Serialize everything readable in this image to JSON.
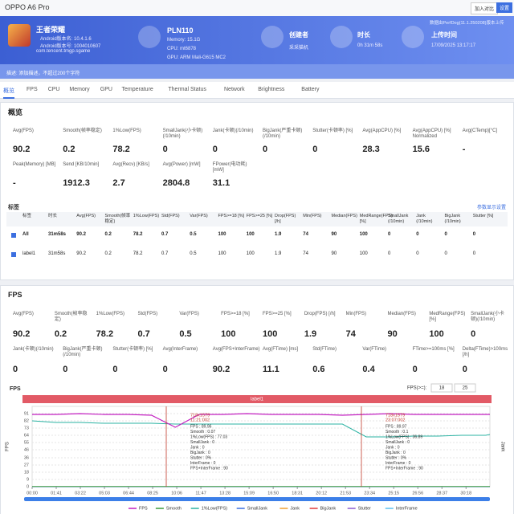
{
  "header": {
    "device": "OPPO A6 Pro",
    "buttons": [
      "加入对比",
      "设置"
    ],
    "upload_note": "数据由PerfDog(11.1.250208)版本上传"
  },
  "app": {
    "name": "王者荣耀",
    "lines": [
      "Android版本名: 10.4.1.6",
      "Android版本号: 1004010607",
      "com.tencent.tmgp.sgame"
    ]
  },
  "device": {
    "model": "PLN110",
    "lines": [
      "Memory: 15.1G",
      "CPU: mt6878",
      "GPU: ARM Mali-G615 MC2"
    ]
  },
  "info": [
    {
      "label": "创建者",
      "value": "采采猫机"
    },
    {
      "label": "时长",
      "value": "0h 31m 58s"
    },
    {
      "label": "上传时间",
      "value": "17/09/2025 13:17:17"
    }
  ],
  "description": "描述: 添加描述，不超过200个字符",
  "tabs": [
    "概览",
    "FPS",
    "CPU",
    "Memory",
    "GPU",
    "Temperature",
    "Thermal Status",
    "Network",
    "Brightness",
    "Battery"
  ],
  "overview": {
    "title": "概览",
    "metrics": [
      [
        {
          "label": "Avg(FPS)",
          "value": 90.2
        },
        {
          "label": "Smooth(帧率稳定)",
          "value": 0.2
        },
        {
          "label": "1%Low(FPS)",
          "value": 78.2
        },
        {
          "label": "SmallJank(小卡顿)(/10min)",
          "value": 0
        },
        {
          "label": "Jank(卡顿)(/10min)",
          "value": 0
        },
        {
          "label": "BigJank(严重卡顿)(/10min)",
          "value": 0
        },
        {
          "label": "Stutter(卡顿率) [%]",
          "value": 0
        },
        {
          "label": "Avg(AppCPU) [%]",
          "value": 28.3
        },
        {
          "label": "Avg(AppCPU) [%] Normalized",
          "value": 15.6
        },
        {
          "label": "Avg(CTemp)[°C]",
          "value": "-"
        }
      ],
      [
        {
          "label": "Peak(Memory) [MB]",
          "value": "-"
        },
        {
          "label": "Send [KB/10min]",
          "value": 1912.3
        },
        {
          "label": "Avg(Recv) [KB/s]",
          "value": 2.7
        },
        {
          "label": "Avg(Power) [mW]",
          "value": 2804.8
        },
        {
          "label": "FPower(电功耗) [mW]",
          "value": 31.1
        }
      ]
    ],
    "labels_title": "标签",
    "settings_link": "参数显示设置",
    "table": {
      "columns": [
        "标签",
        "时长",
        "Avg(FPS)",
        "Smooth(帧率稳定)",
        "1%Low(FPS)",
        "Std(FPS)",
        "Var(FPS)",
        "FPS>=18 [%]",
        "FPS>=25 [%]",
        "Drop(FPS) [/h]",
        "Min(FPS)",
        "Median(FPS)",
        "MedRange(FPS)[%]",
        "SmallJank (/10min)",
        "Jank (/10min)",
        "BigJank (/10min)",
        "Stutter [%]"
      ],
      "rows": [
        [
          "All",
          "31m58s",
          90.2,
          0.2,
          78.2,
          0.7,
          0.5,
          100,
          100,
          1.9,
          74,
          90,
          100,
          0,
          0,
          0,
          0
        ],
        [
          "label1",
          "31m58s",
          90.2,
          0.2,
          78.2,
          0.7,
          0.5,
          100,
          100,
          1.9,
          74,
          90,
          100,
          0,
          0,
          0,
          0
        ]
      ]
    }
  },
  "fps": {
    "title": "FPS",
    "metrics": [
      [
        {
          "label": "Avg(FPS)",
          "value": 90.2
        },
        {
          "label": "Smooth(帧率稳定)",
          "value": 0.2
        },
        {
          "label": "1%Low(FPS)",
          "value": 78.2
        },
        {
          "label": "Std(FPS)",
          "value": 0.7
        },
        {
          "label": "Var(FPS)",
          "value": 0.5
        },
        {
          "label": "FPS>=18 [%]",
          "value": 100
        },
        {
          "label": "FPS>=25 [%]",
          "value": 100
        },
        {
          "label": "Drop(FPS) [/h]",
          "value": 1.9
        },
        {
          "label": "Min(FPS)",
          "value": 74
        },
        {
          "label": "Median(FPS)",
          "value": 90
        },
        {
          "label": "MedRange(FPS)[%]",
          "value": 100
        },
        {
          "label": "SmallJank(小卡顿)(/10min)",
          "value": 0
        }
      ],
      [
        {
          "label": "Jank(卡顿)(/10min)",
          "value": 0
        },
        {
          "label": "BigJank(严重卡顿)(/10min)",
          "value": 0
        },
        {
          "label": "Stutter(卡顿率) [%]",
          "value": 0
        },
        {
          "label": "Avg(InterFrame)",
          "value": 0
        },
        {
          "label": "Avg(FPS+InterFrame)",
          "value": 90.2
        },
        {
          "label": "Avg(FTime) [ms]",
          "value": 11.1
        },
        {
          "label": "Std(FTime)",
          "value": 0.6
        },
        {
          "label": "Var(FTime)",
          "value": 0.4
        },
        {
          "label": "FTime>=100ms [%]",
          "value": 0
        },
        {
          "label": "Delta(FTime)>100ms [/h]",
          "value": 0
        }
      ]
    ],
    "chart": {
      "type": "line",
      "title": "FPS",
      "threshold_label": "FPS(>=):",
      "thresholds": [
        18,
        25
      ],
      "band": "label1",
      "ylabel": "FPS",
      "y2label": "Jank",
      "x": [
        0,
        100,
        200,
        300,
        400,
        500,
        600,
        700,
        800,
        900,
        1000,
        1100,
        1200,
        1300,
        1400,
        1500,
        1600,
        1700,
        1800,
        1900,
        1918
      ],
      "xlim": [
        0,
        1918
      ],
      "xticks": [
        {
          "value": 0,
          "label": "00:00"
        },
        {
          "value": 101,
          "label": "01:41"
        },
        {
          "value": 202,
          "label": "03:22"
        },
        {
          "value": 303,
          "label": "05:03"
        },
        {
          "value": 404,
          "label": "06:44"
        },
        {
          "value": 505,
          "label": "08:25"
        },
        {
          "value": 606,
          "label": "10:06"
        },
        {
          "value": 707,
          "label": "11:47"
        },
        {
          "value": 808,
          "label": "13:28"
        },
        {
          "value": 909,
          "label": "15:09"
        },
        {
          "value": 1010,
          "label": "16:50"
        },
        {
          "value": 1111,
          "label": "18:31"
        },
        {
          "value": 1212,
          "label": "20:12"
        },
        {
          "value": 1313,
          "label": "21:53"
        },
        {
          "value": 1414,
          "label": "23:34"
        },
        {
          "value": 1515,
          "label": "25:15"
        },
        {
          "value": 1616,
          "label": "26:56"
        },
        {
          "value": 1717,
          "label": "28:37"
        },
        {
          "value": 1818,
          "label": "30:18"
        }
      ],
      "ylim": [
        0,
        100
      ],
      "yticks": [
        0,
        9,
        18,
        27,
        36,
        46,
        55,
        64,
        73,
        82,
        91
      ],
      "series": [
        {
          "name": "FPS",
          "color": "#c21fc0",
          "values": [
            90,
            90,
            91,
            90,
            90,
            89,
            74,
            90,
            90,
            91,
            90,
            90,
            90,
            89,
            90,
            91,
            90,
            90,
            90,
            90,
            90
          ]
        },
        {
          "name": "Smooth",
          "color": "#3a9a3a",
          "values": [
            0.2,
            0.2,
            0.2,
            0.2,
            0.2,
            0.2,
            0.2,
            0.2,
            0.2,
            0.2,
            0.2,
            0.2,
            0.2,
            0.2,
            0.2,
            0.2,
            0.2,
            0.2,
            0.2,
            0.2,
            0.2
          ]
        },
        {
          "name": "1%Low(FPS)",
          "color": "#2bb3a3",
          "values": [
            82,
            80,
            80,
            79,
            79,
            79,
            78,
            78,
            78,
            78,
            78,
            78,
            78,
            78,
            62,
            62,
            63,
            63,
            64,
            64,
            65
          ]
        },
        {
          "name": "SmallJank",
          "color": "#3b6fe0",
          "values": [
            0,
            0,
            0,
            0,
            0,
            0,
            0,
            0,
            0,
            0,
            0,
            0,
            0,
            0,
            0,
            0,
            0,
            0,
            0,
            0,
            0
          ]
        },
        {
          "name": "Jank",
          "color": "#f0a030",
          "values": [
            0,
            0,
            0,
            0,
            0,
            0,
            0,
            0,
            0,
            0,
            0,
            0,
            0,
            0,
            0,
            0,
            0,
            0,
            0,
            0,
            0
          ]
        },
        {
          "name": "BigJank",
          "color": "#e03a3a",
          "values": [
            0,
            0,
            0,
            0,
            0,
            0,
            0,
            0,
            0,
            0,
            0,
            0,
            0,
            0,
            0,
            0,
            0,
            0,
            0,
            0,
            0
          ]
        },
        {
          "name": "Stutter",
          "color": "#8a5ad0",
          "values": [
            0,
            0,
            0,
            0,
            0,
            0,
            0,
            0,
            0,
            0,
            0,
            0,
            0,
            0,
            0,
            0,
            0,
            0,
            0,
            0,
            0
          ]
        },
        {
          "name": "InterFrame",
          "color": "#5ac0f0",
          "values": [
            0,
            0,
            0,
            0,
            0,
            0,
            0,
            0,
            0,
            0,
            0,
            0,
            0,
            0,
            0,
            0,
            0,
            0,
            0,
            0,
            0
          ]
        }
      ],
      "tooltips": [
        {
          "title": [
            "718x1579",
            "11:21:002"
          ],
          "items": [
            "FPS : 89.96",
            "Smooth : 0.07",
            "1%Low(FPS) : 77.03",
            "SmallJank : 0",
            "Jank : 0",
            "BigJank : 0",
            "Stutter : 0%",
            "InterFrame : 0",
            "FPS+InterFrame : 90"
          ]
        },
        {
          "title": [
            "718x1579",
            "23:07:002"
          ],
          "items": [
            "FPS : 89.97",
            "Smooth : 0.1",
            "1%Low(FPS) : 36.89",
            "SmallJank : 0",
            "Jank : 0",
            "BigJank : 0",
            "Stutter : 0%",
            "InterFrame : 0",
            "FPS+InterFrame : 90"
          ]
        }
      ]
    }
  }
}
